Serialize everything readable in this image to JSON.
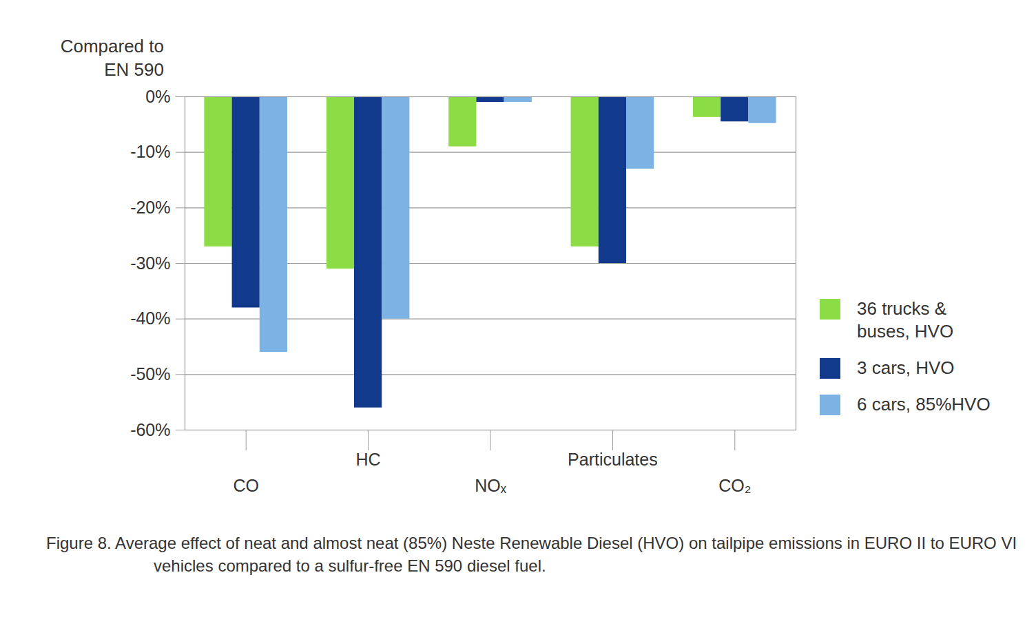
{
  "chart_data": {
    "type": "bar",
    "y_label": "Compared to EN 590",
    "caption": "Figure 8.    Average effect of neat and almost neat (85%) Neste Renewable Diesel (HVO) on tailpipe emissions in EURO II to EURO VI vehicles compared to a sulfur-free EN 590 diesel fuel.",
    "categories": [
      "CO",
      "HC",
      "NOₓ",
      "Particulates",
      "CO₂"
    ],
    "series": [
      {
        "name": "36 trucks & buses, HVO",
        "color": "#8bdc45",
        "values": [
          -27,
          -31,
          -9,
          -27,
          -3.7
        ]
      },
      {
        "name": "3 cars, HVO",
        "color": "#123a8c",
        "values": [
          -38,
          -56,
          -1,
          -30,
          -4.5
        ]
      },
      {
        "name": "6 cars, 85%HVO",
        "color": "#7db3e4",
        "values": [
          -46,
          -40,
          -1,
          -13,
          -4.8
        ]
      }
    ],
    "ylim": [
      -60,
      0
    ],
    "yticks": [
      {
        "value": 0,
        "label": "0%"
      },
      {
        "value": -10,
        "label": "-10%"
      },
      {
        "value": -20,
        "label": "-20%"
      },
      {
        "value": -30,
        "label": "-30%"
      },
      {
        "value": -40,
        "label": "-40%"
      },
      {
        "value": -50,
        "label": "-50%"
      },
      {
        "value": -60,
        "label": "-60%"
      }
    ],
    "grid": true,
    "legend": "right"
  }
}
